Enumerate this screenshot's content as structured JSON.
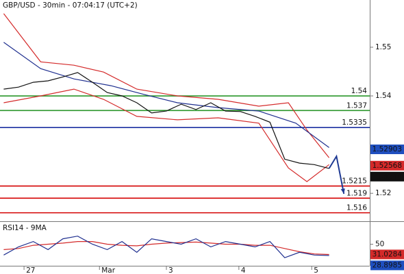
{
  "chart_data": [
    {
      "type": "line",
      "title": "GBP/USD - 30min - 07:04:17 (UTC+2)",
      "xlim": [
        0,
        100
      ],
      "ylim": [
        1.5144,
        1.5597
      ],
      "yticks": [
        1.52,
        1.54,
        1.55
      ],
      "lines": [
        {
          "color": "#d42a2a",
          "x": [
            1,
            11,
            20,
            28,
            37,
            48,
            59,
            70,
            78,
            83,
            89
          ],
          "values": [
            1.5569,
            1.547,
            1.5463,
            1.5449,
            1.5414,
            1.54,
            1.5393,
            1.5379,
            1.5386,
            1.533,
            1.5273
          ]
        },
        {
          "color": "#d42a2a",
          "x": [
            1,
            11,
            20,
            28,
            37,
            48,
            59,
            70,
            78,
            83,
            89
          ],
          "values": [
            1.5386,
            1.54,
            1.5414,
            1.5393,
            1.5358,
            1.5351,
            1.5355,
            1.5344,
            1.5252,
            1.5224,
            1.5259
          ]
        },
        {
          "color": "#1f2f8f",
          "x": [
            1,
            11,
            20,
            30,
            39,
            48,
            59,
            70,
            80,
            89
          ],
          "values": [
            1.551,
            1.5456,
            1.5435,
            1.5421,
            1.5403,
            1.5386,
            1.5376,
            1.5369,
            1.5344,
            1.5294
          ]
        },
        {
          "color": "#111111",
          "x": [
            1,
            5,
            9,
            13,
            17,
            21,
            25,
            29,
            33,
            37,
            41,
            45,
            49,
            53,
            57,
            61,
            65,
            69,
            73,
            77,
            81,
            85,
            89
          ],
          "values": [
            1.5414,
            1.5418,
            1.5428,
            1.5431,
            1.5439,
            1.5448,
            1.5428,
            1.5407,
            1.54,
            1.5386,
            1.5365,
            1.5369,
            1.5383,
            1.5372,
            1.5386,
            1.5369,
            1.5368,
            1.5358,
            1.5346,
            1.527,
            1.5262,
            1.5259,
            1.5251
          ]
        },
        {
          "color": "#1f3a93",
          "x": [
            89,
            91,
            93
          ],
          "values": [
            1.5251,
            1.5276,
            1.5199
          ],
          "arrow": true
        }
      ],
      "levels": [
        {
          "value": 1.54,
          "color": "#2a962a"
        },
        {
          "value": 1.537,
          "color": "#2a962a"
        },
        {
          "value": 1.5335,
          "color": "#1a2fa0"
        },
        {
          "value": 1.5215,
          "color": "#d40000"
        },
        {
          "value": 1.519,
          "color": "#d40000"
        },
        {
          "value": 1.516,
          "color": "#d40000"
        }
      ],
      "markers": [
        {
          "value": 1.52903,
          "color": "#1f4fbf"
        },
        {
          "value": 1.52568,
          "color": "#d42a2a"
        },
        {
          "value": 1.5244,
          "color": "#111111"
        }
      ]
    },
    {
      "type": "line",
      "title": "RSI14 - 9MA",
      "xlim": [
        0,
        100
      ],
      "ylim": [
        10,
        90
      ],
      "yticks": [
        50
      ],
      "xticks": [
        {
          "value": 6.5,
          "label": "27"
        },
        {
          "value": 26.9,
          "label": "Mar"
        },
        {
          "value": 45,
          "label": "3"
        },
        {
          "value": 64.6,
          "label": "4"
        },
        {
          "value": 84.3,
          "label": "5"
        }
      ],
      "lines": [
        {
          "color": "#d42a2a",
          "x": [
            1,
            5,
            9,
            13,
            17,
            21,
            25,
            29,
            33,
            37,
            41,
            45,
            49,
            53,
            57,
            61,
            65,
            69,
            73,
            77,
            81,
            85,
            89
          ],
          "values": [
            40,
            42,
            48,
            50,
            52,
            55,
            55,
            50,
            48,
            47,
            50,
            52,
            53,
            54,
            52,
            50,
            50,
            48,
            48,
            42,
            36,
            32,
            31
          ]
        },
        {
          "color": "#1f2f8f",
          "x": [
            1,
            5,
            9,
            13,
            17,
            21,
            25,
            29,
            33,
            37,
            41,
            45,
            49,
            53,
            57,
            61,
            65,
            69,
            73,
            77,
            81,
            85,
            89
          ],
          "values": [
            30,
            45,
            55,
            40,
            60,
            65,
            50,
            40,
            55,
            35,
            60,
            55,
            50,
            60,
            45,
            55,
            50,
            45,
            55,
            25,
            35,
            30,
            29
          ]
        }
      ],
      "markers": [
        {
          "value": 31.0284,
          "color": "#d42a2a"
        },
        {
          "value": 28.8985,
          "color": "#1f4fbf"
        }
      ]
    }
  ]
}
